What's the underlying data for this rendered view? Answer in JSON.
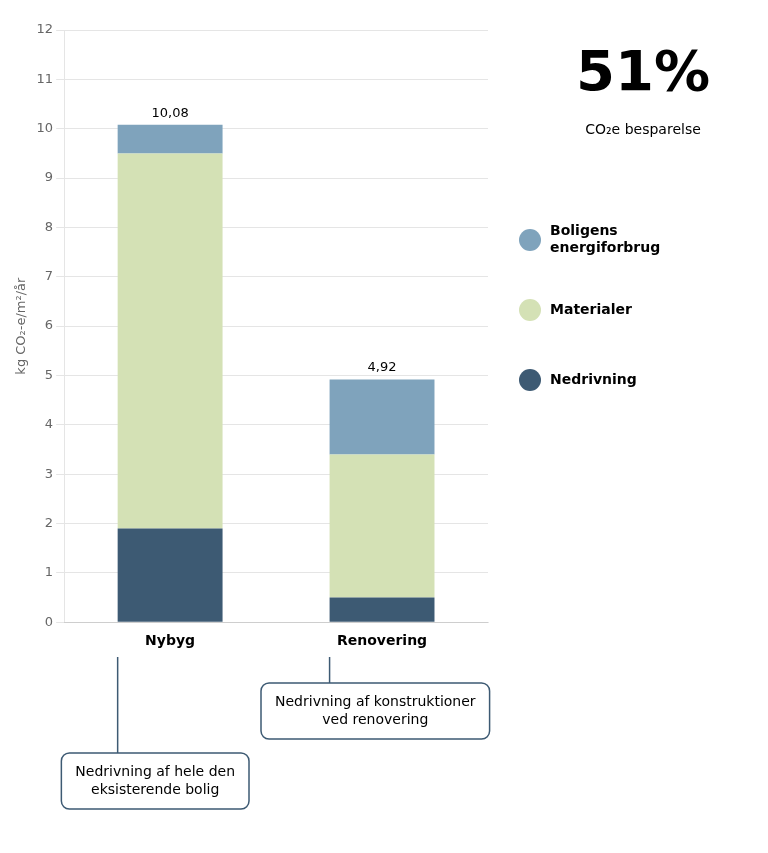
{
  "chart_data": {
    "type": "bar",
    "stacked": true,
    "categories": [
      "Nybyg",
      "Renovering"
    ],
    "series": [
      {
        "name": "Nedrivning",
        "color": "#3d5a73",
        "values": [
          1.9,
          0.5
        ]
      },
      {
        "name": "Materialer",
        "color": "#d4e1b5",
        "values": [
          7.6,
          2.9
        ]
      },
      {
        "name": "Boligens\nenergiforbrug",
        "color": "#7fa3bc",
        "values": [
          0.58,
          1.52
        ]
      }
    ],
    "totals": {
      "values": [
        10.08,
        4.92
      ],
      "value_labels": [
        "10,08",
        "4,92"
      ]
    },
    "ylabel": "kg CO₂-e/m²/år",
    "ylim": [
      0,
      12
    ],
    "yticks": [
      0,
      1,
      2,
      3,
      4,
      5,
      6,
      7,
      8,
      9,
      10,
      11,
      12
    ],
    "grid": true,
    "legend": "right",
    "annotations": [
      {
        "text": "51%"
      },
      {
        "text": "CO₂e besparelse"
      },
      {
        "text": "Nedrivning af hele den\neksisterende bolig",
        "category": "Nybyg"
      },
      {
        "text": "Nedrivning af konstruktioner\nved renovering",
        "category": "Renovering"
      }
    ]
  }
}
